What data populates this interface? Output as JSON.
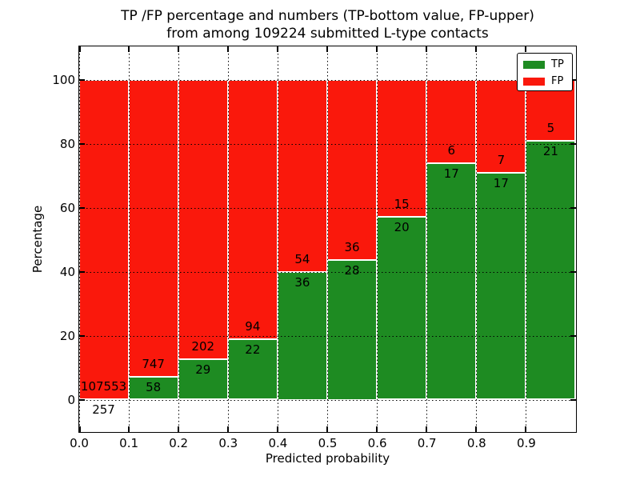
{
  "chart_data": {
    "type": "bar",
    "stacked": true,
    "title_line1": "TP /FP percentage and numbers (TP-bottom value, FP-upper)",
    "title_line2": "from among 109224 submitted L-type contacts",
    "xlabel": "Predicted probability",
    "ylabel": "Percentage",
    "total_submitted": 109224,
    "x_bin_starts": [
      0.0,
      0.1,
      0.2,
      0.3,
      0.4,
      0.5,
      0.6,
      0.7,
      0.8,
      0.9
    ],
    "x_bin_width": 0.1,
    "x_tick_labels": [
      "0.0",
      "0.1",
      "0.2",
      "0.3",
      "0.4",
      "0.5",
      "0.6",
      "0.7",
      "0.8",
      "0.9"
    ],
    "y_tick_values": [
      0,
      20,
      40,
      60,
      80,
      100
    ],
    "xlim": [
      0.0,
      1.0
    ],
    "ylim": [
      -10,
      110
    ],
    "grid": "dotted",
    "legend_position": "upper right",
    "series": [
      {
        "name": "TP",
        "color": "#1e8b22",
        "counts": [
          257,
          58,
          29,
          22,
          36,
          28,
          20,
          17,
          17,
          21
        ]
      },
      {
        "name": "FP",
        "color": "#fa180c",
        "counts": [
          107553,
          747,
          202,
          94,
          54,
          36,
          15,
          6,
          7,
          5
        ]
      }
    ],
    "tp_percent_computed": [
      0.24,
      7.2,
      12.55,
      18.97,
      40.0,
      43.75,
      57.14,
      73.91,
      70.83,
      80.77
    ]
  }
}
